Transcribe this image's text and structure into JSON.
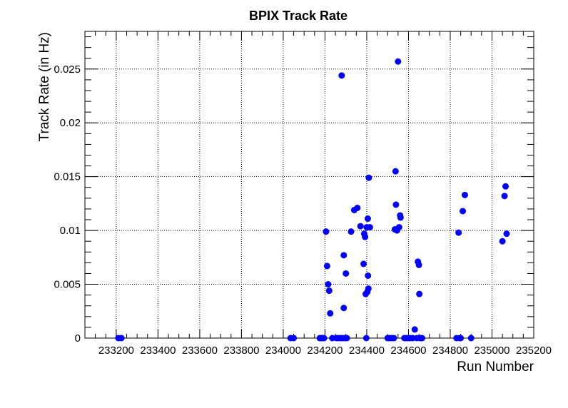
{
  "chart_data": {
    "type": "scatter",
    "title": "BPIX Track Rate",
    "xlabel": "Run Number",
    "ylabel": "Track Rate (in Hz)",
    "xlim": [
      233050,
      235200
    ],
    "ylim": [
      0,
      0.0285
    ],
    "xticks": [
      "233200",
      "233400",
      "233600",
      "233800",
      "234000",
      "234200",
      "234400",
      "234600",
      "234800",
      "235000",
      "235200"
    ],
    "yticks": [
      "0",
      "0.005",
      "0.01",
      "0.015",
      "0.02",
      "0.025"
    ],
    "grid": true,
    "marker_color": "#0000ff",
    "series": [
      {
        "x": [
          233210,
          233225,
          234035,
          234050,
          234175,
          234180,
          234185,
          234190,
          234195,
          234205,
          234210,
          234215,
          234220,
          234225,
          234235,
          234255,
          234265,
          234275,
          234280,
          234285,
          234290,
          234290,
          234295,
          234300,
          234305,
          234325,
          234340,
          234355,
          234370,
          234385,
          234388,
          234392,
          234395,
          234398,
          234400,
          234403,
          234405,
          234406,
          234408,
          234410,
          234415,
          234500,
          234510,
          234520,
          234530,
          234535,
          234538,
          234540,
          234545,
          234550,
          234555,
          234560,
          234562,
          234580,
          234590,
          234600,
          234610,
          234620,
          234630,
          234640,
          234645,
          234650,
          234652,
          234655,
          234660,
          234665,
          234830,
          234840,
          234845,
          234850,
          234860,
          234870,
          234900,
          235050,
          235060,
          235065,
          235070
        ],
        "y": [
          0,
          0,
          0,
          0,
          0,
          0,
          0,
          0,
          0,
          0.0099,
          0.0067,
          0.005,
          0.0044,
          0.0023,
          0,
          0,
          0,
          0,
          0.0244,
          0,
          0.0077,
          0.0028,
          0,
          0.006,
          0,
          0.0099,
          0.0119,
          0.0121,
          0.0104,
          0.0069,
          0.0097,
          0.0094,
          0.0041,
          0,
          0.0103,
          0.0043,
          0.0111,
          0.0058,
          0.0046,
          0.0149,
          0.0103,
          0,
          0,
          0,
          0,
          0.0101,
          0.0155,
          0.0124,
          0.01,
          0.0257,
          0.0103,
          0.0114,
          0.0112,
          0,
          0,
          0,
          0,
          0,
          0.0008,
          0,
          0.0071,
          0.0068,
          0.0041,
          0,
          0,
          0,
          0,
          0.0098,
          0,
          0,
          0.0118,
          0.0133,
          0,
          0.009,
          0.0132,
          0.0141,
          0.0097
        ]
      }
    ]
  }
}
